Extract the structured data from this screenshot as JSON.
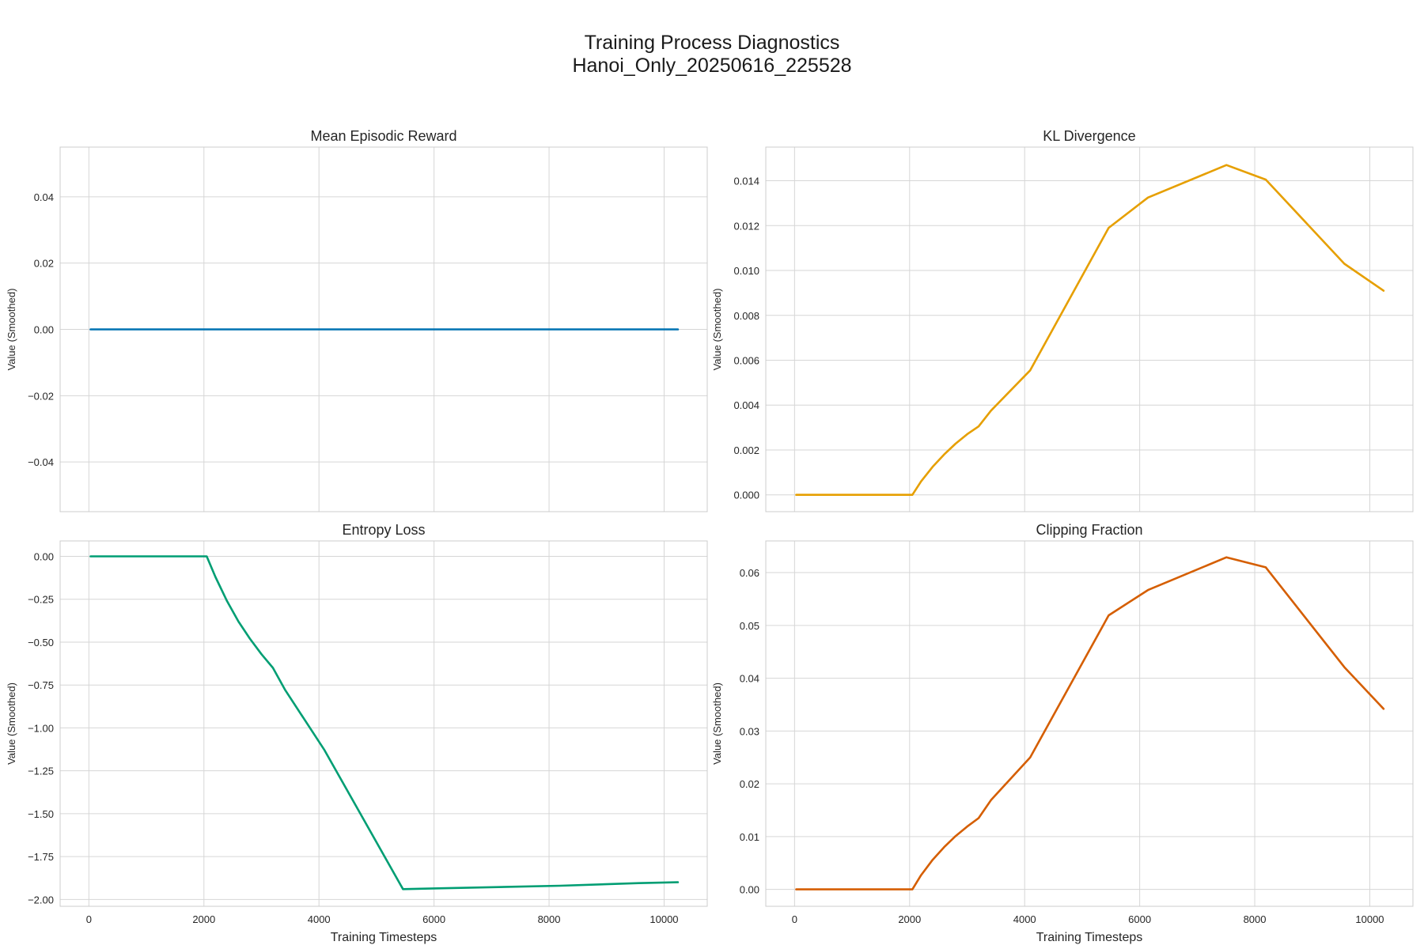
{
  "figure": {
    "title_line1": "Training Process Diagnostics",
    "title_line2": "Hanoi_Only_20250616_225528"
  },
  "chart_data": [
    {
      "type": "line",
      "title": "Mean Episodic Reward",
      "xlabel": "",
      "ylabel": "Value (Smoothed)",
      "xlim": [
        -500,
        10750
      ],
      "ylim": [
        -0.055,
        0.055
      ],
      "xticks": [
        0,
        2000,
        4000,
        6000,
        8000,
        10000
      ],
      "xtick_labels_shown": false,
      "yticks": [
        -0.04,
        -0.02,
        0.0,
        0.02,
        0.04
      ],
      "ytick_labels": [
        "−0.04",
        "−0.02",
        "0.00",
        "0.02",
        "0.04"
      ],
      "grid": true,
      "color": "#0072B2",
      "series": [
        {
          "x": [
            30,
            10240
          ],
          "y": [
            0.0,
            0.0
          ]
        }
      ]
    },
    {
      "type": "line",
      "title": "KL Divergence",
      "xlabel": "",
      "ylabel": "Value (Smoothed)",
      "xlim": [
        -500,
        10750
      ],
      "ylim": [
        -0.00075,
        0.0155
      ],
      "xticks": [
        0,
        2000,
        4000,
        6000,
        8000,
        10000
      ],
      "xtick_labels_shown": false,
      "yticks": [
        0.0,
        0.002,
        0.004,
        0.006,
        0.008,
        0.01,
        0.012,
        0.014
      ],
      "ytick_labels": [
        "0.000",
        "0.002",
        "0.004",
        "0.006",
        "0.008",
        "0.010",
        "0.012",
        "0.014"
      ],
      "grid": true,
      "color": "#E69F00",
      "series": [
        {
          "x": [
            30,
            2048,
            2200,
            2400,
            2600,
            2800,
            3000,
            3200,
            3414,
            4096,
            5461,
            6144,
            7509,
            8192,
            9557,
            10240
          ],
          "y": [
            0.0,
            0.0,
            0.0006,
            0.00125,
            0.0018,
            0.00228,
            0.0027,
            0.00305,
            0.00375,
            0.00555,
            0.0119,
            0.01325,
            0.0147,
            0.01405,
            0.0103,
            0.0091
          ]
        }
      ]
    },
    {
      "type": "line",
      "title": "Entropy Loss",
      "xlabel": "Training Timesteps",
      "ylabel": "Value (Smoothed)",
      "xlim": [
        -500,
        10750
      ],
      "ylim": [
        -2.04,
        0.09
      ],
      "xticks": [
        0,
        2000,
        4000,
        6000,
        8000,
        10000
      ],
      "xtick_labels": [
        "0",
        "2000",
        "4000",
        "6000",
        "8000",
        "10000"
      ],
      "yticks": [
        -2.0,
        -1.75,
        -1.5,
        -1.25,
        -1.0,
        -0.75,
        -0.5,
        -0.25,
        0.0
      ],
      "ytick_labels": [
        "−2.00",
        "−1.75",
        "−1.50",
        "−1.25",
        "−1.00",
        "−0.75",
        "−0.50",
        "−0.25",
        "0.00"
      ],
      "grid": true,
      "color": "#009E73",
      "series": [
        {
          "x": [
            30,
            2048,
            2200,
            2400,
            2600,
            2800,
            3000,
            3200,
            3414,
            4096,
            5461,
            6144,
            7509,
            8192,
            9557,
            10240
          ],
          "y": [
            0.0,
            0.0,
            -0.12,
            -0.26,
            -0.38,
            -0.48,
            -0.57,
            -0.65,
            -0.78,
            -1.13,
            -1.94,
            -1.935,
            -1.925,
            -1.92,
            -1.905,
            -1.9
          ]
        }
      ]
    },
    {
      "type": "line",
      "title": "Clipping Fraction",
      "xlabel": "Training Timesteps",
      "ylabel": "Value (Smoothed)",
      "xlim": [
        -500,
        10750
      ],
      "ylim": [
        -0.0032,
        0.066
      ],
      "xticks": [
        0,
        2000,
        4000,
        6000,
        8000,
        10000
      ],
      "xtick_labels": [
        "0",
        "2000",
        "4000",
        "6000",
        "8000",
        "10000"
      ],
      "yticks": [
        0.0,
        0.01,
        0.02,
        0.03,
        0.04,
        0.05,
        0.06
      ],
      "ytick_labels": [
        "0.00",
        "0.01",
        "0.02",
        "0.03",
        "0.04",
        "0.05",
        "0.06"
      ],
      "grid": true,
      "color": "#D55E00",
      "series": [
        {
          "x": [
            30,
            2048,
            2200,
            2400,
            2600,
            2800,
            3000,
            3200,
            3414,
            4096,
            5461,
            6144,
            7509,
            8192,
            9557,
            10240
          ],
          "y": [
            0.0,
            0.0,
            0.0027,
            0.0056,
            0.008,
            0.0101,
            0.0119,
            0.0135,
            0.0169,
            0.025,
            0.0519,
            0.0567,
            0.0629,
            0.061,
            0.0421,
            0.0342
          ]
        }
      ]
    }
  ]
}
